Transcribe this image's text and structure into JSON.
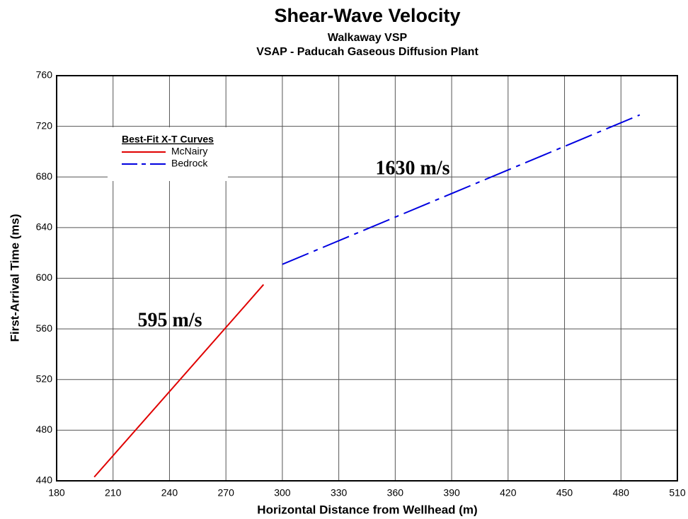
{
  "chart_data": {
    "type": "line",
    "title": "Shear-Wave Velocity",
    "subtitle": [
      "Walkaway VSP",
      "VSAP - Paducah Gaseous Diffusion Plant"
    ],
    "x_label": "Horizontal Distance from Wellhead (m)",
    "y_label": "First-Arrival Time (ms)",
    "xlim": [
      180,
      510
    ],
    "ylim": [
      440,
      760
    ],
    "xticks": [
      180,
      210,
      240,
      270,
      300,
      330,
      360,
      390,
      420,
      450,
      480,
      510
    ],
    "yticks": [
      440,
      480,
      520,
      560,
      600,
      640,
      680,
      720,
      760
    ],
    "grid": true,
    "legend": "upper left",
    "legend_title": "Best-Fit X-T Curves",
    "series": [
      {
        "name": "McNairy",
        "color": "#e00000",
        "linestyle": "solid",
        "x": [
          200,
          280,
          290
        ],
        "values": [
          443,
          578,
          595
        ]
      },
      {
        "name": "Bedrock",
        "color": "#0000e0",
        "linestyle": "dashed",
        "x": [
          300,
          490
        ],
        "values": [
          611,
          729
        ]
      }
    ],
    "annotations": [
      "1630 m/s",
      "595 m/s"
    ]
  }
}
